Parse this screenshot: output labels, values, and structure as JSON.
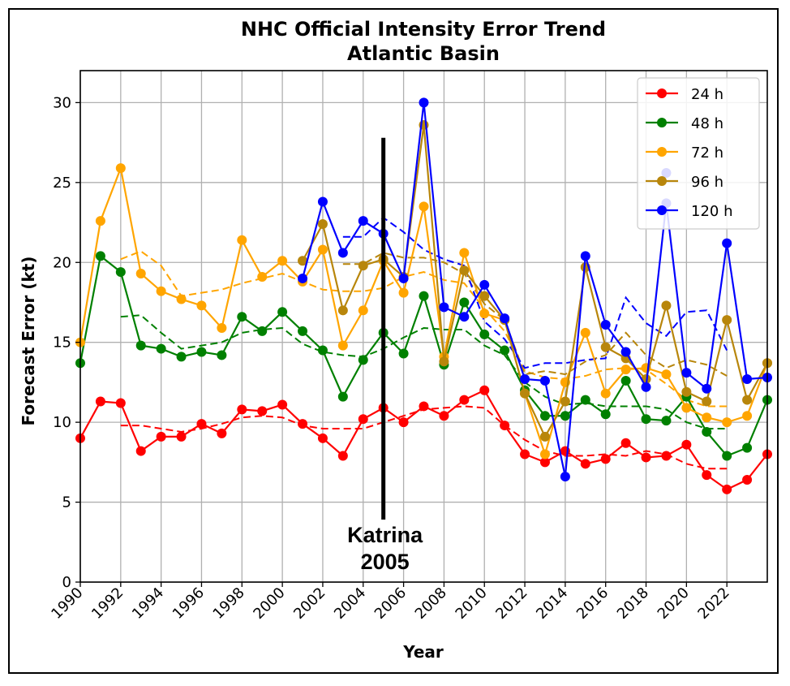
{
  "chart_data": {
    "type": "line",
    "title": "NHC Official Intensity Error Trend",
    "subtitle": "Atlantic Basin",
    "xlabel": "Year",
    "ylabel": "Forecast Error (kt)",
    "xlim": [
      1990,
      2024
    ],
    "ylim": [
      0,
      32
    ],
    "xticks": [
      1990,
      1992,
      1994,
      1996,
      1998,
      2000,
      2002,
      2004,
      2006,
      2008,
      2010,
      2012,
      2014,
      2016,
      2018,
      2020,
      2022
    ],
    "yticks": [
      0,
      5,
      10,
      15,
      20,
      25,
      30
    ],
    "grid": true,
    "legend_position": "top-right",
    "annotation": {
      "x": 2005,
      "line_to": 27.8,
      "label_line1": "Katrina",
      "label_line2": "2005"
    },
    "series": [
      {
        "name": "24 h",
        "color": "#ff0000",
        "x": [
          1990,
          1991,
          1992,
          1993,
          1994,
          1995,
          1996,
          1997,
          1998,
          1999,
          2000,
          2001,
          2002,
          2003,
          2004,
          2005,
          2006,
          2007,
          2008,
          2009,
          2010,
          2011,
          2012,
          2013,
          2014,
          2015,
          2016,
          2017,
          2018,
          2019,
          2020,
          2021,
          2022,
          2023,
          2024
        ],
        "values": [
          9.0,
          11.3,
          11.2,
          8.2,
          9.1,
          9.1,
          9.9,
          9.3,
          10.8,
          10.7,
          11.1,
          9.9,
          9.0,
          7.9,
          10.2,
          10.9,
          10.0,
          11.0,
          10.4,
          11.4,
          12.0,
          9.8,
          8.0,
          7.5,
          8.2,
          7.4,
          7.7,
          8.7,
          7.8,
          7.9,
          8.6,
          6.7,
          5.8,
          6.4,
          8.0
        ],
        "trend_x": [
          1992,
          1993,
          1994,
          1995,
          1996,
          1997,
          1998,
          1999,
          2000,
          2001,
          2002,
          2003,
          2004,
          2005,
          2006,
          2007,
          2008,
          2009,
          2010,
          2011,
          2012,
          2013,
          2014,
          2015,
          2016,
          2017,
          2018,
          2019,
          2020,
          2021,
          2022
        ],
        "trend": [
          9.8,
          9.8,
          9.6,
          9.4,
          9.6,
          9.9,
          10.3,
          10.4,
          10.3,
          9.8,
          9.6,
          9.6,
          9.6,
          10.0,
          10.4,
          10.8,
          10.9,
          11.0,
          10.9,
          9.8,
          8.9,
          8.2,
          7.9,
          7.9,
          8.0,
          7.9,
          8.2,
          8.0,
          7.4,
          7.1,
          7.1
        ]
      },
      {
        "name": "48 h",
        "color": "#008000",
        "x": [
          1990,
          1991,
          1992,
          1993,
          1994,
          1995,
          1996,
          1997,
          1998,
          1999,
          2000,
          2001,
          2002,
          2003,
          2004,
          2005,
          2006,
          2007,
          2008,
          2009,
          2010,
          2011,
          2012,
          2013,
          2014,
          2015,
          2016,
          2017,
          2018,
          2019,
          2020,
          2021,
          2022,
          2023,
          2024
        ],
        "values": [
          13.7,
          20.4,
          19.4,
          14.8,
          14.6,
          14.1,
          14.4,
          14.2,
          16.6,
          15.7,
          16.9,
          15.7,
          14.5,
          11.6,
          13.9,
          15.6,
          14.3,
          17.9,
          13.6,
          17.5,
          15.5,
          14.5,
          12.0,
          10.4,
          10.4,
          11.4,
          10.5,
          12.6,
          10.2,
          10.1,
          11.6,
          9.4,
          7.9,
          8.4,
          11.4
        ],
        "trend_x": [
          1992,
          1993,
          1994,
          1995,
          1996,
          1997,
          1998,
          1999,
          2000,
          2001,
          2002,
          2003,
          2004,
          2005,
          2006,
          2007,
          2008,
          2009,
          2010,
          2011,
          2012,
          2013,
          2014,
          2015,
          2016,
          2017,
          2018,
          2019,
          2020,
          2021,
          2022
        ],
        "trend": [
          16.6,
          16.7,
          15.6,
          14.6,
          14.8,
          15.0,
          15.6,
          15.8,
          15.9,
          14.9,
          14.4,
          14.2,
          14.1,
          14.6,
          15.3,
          15.9,
          15.8,
          15.8,
          14.8,
          14.2,
          12.5,
          11.6,
          11.1,
          11.2,
          11.0,
          11.0,
          11.0,
          10.8,
          10.0,
          9.6,
          9.6
        ]
      },
      {
        "name": "72 h",
        "color": "#ffa500",
        "x": [
          1990,
          1991,
          1992,
          1993,
          1994,
          1995,
          1996,
          1997,
          1998,
          1999,
          2000,
          2001,
          2002,
          2003,
          2004,
          2005,
          2006,
          2007,
          2008,
          2009,
          2010,
          2011,
          2012,
          2013,
          2014,
          2015,
          2016,
          2017,
          2018,
          2019,
          2020,
          2021,
          2022,
          2023,
          2024
        ],
        "values": [
          15.0,
          22.6,
          25.9,
          19.3,
          18.2,
          17.7,
          17.3,
          15.9,
          21.4,
          19.1,
          20.1,
          18.8,
          20.8,
          14.8,
          17.0,
          20.1,
          18.1,
          23.5,
          14.1,
          20.6,
          16.8,
          16.4,
          11.8,
          8.0,
          12.5,
          15.6,
          11.8,
          13.3,
          13.4,
          13.0,
          10.9,
          10.3,
          10.0,
          10.4,
          13.7
        ],
        "trend_x": [
          1992,
          1993,
          1994,
          1995,
          1996,
          1997,
          1998,
          1999,
          2000,
          2001,
          2002,
          2003,
          2004,
          2005,
          2006,
          2007,
          2008,
          2009,
          2010,
          2011,
          2012,
          2013,
          2014,
          2015,
          2016,
          2017,
          2018,
          2019,
          2020,
          2021,
          2022
        ],
        "trend": [
          20.2,
          20.7,
          19.8,
          17.9,
          18.1,
          18.3,
          18.7,
          19.0,
          19.3,
          18.8,
          18.3,
          18.2,
          18.2,
          18.4,
          19.1,
          19.4,
          18.9,
          18.7,
          17.1,
          15.7,
          13.2,
          12.8,
          12.7,
          12.9,
          13.3,
          13.4,
          13.3,
          12.4,
          11.4,
          11.0,
          11.0
        ]
      },
      {
        "name": "96 h",
        "color": "#b8860b",
        "x": [
          2001,
          2002,
          2003,
          2004,
          2005,
          2006,
          2007,
          2008,
          2009,
          2010,
          2011,
          2012,
          2013,
          2014,
          2015,
          2016,
          2017,
          2018,
          2019,
          2020,
          2021,
          2022,
          2023,
          2024
        ],
        "values": [
          20.1,
          22.4,
          17.0,
          19.8,
          20.2,
          19.1,
          28.6,
          13.8,
          19.5,
          17.9,
          16.4,
          11.8,
          9.1,
          11.3,
          19.7,
          14.7,
          14.0,
          12.7,
          17.3,
          11.9,
          11.3,
          16.4,
          11.4,
          13.7
        ],
        "trend_x": [
          2003,
          2004,
          2005,
          2006,
          2007,
          2008,
          2009,
          2010,
          2011,
          2012,
          2013,
          2014,
          2015,
          2016,
          2017,
          2018,
          2019,
          2020,
          2021,
          2022
        ],
        "trend": [
          19.9,
          19.9,
          20.6,
          20.3,
          20.3,
          20.0,
          19.3,
          17.4,
          16.4,
          13.0,
          13.2,
          13.0,
          13.8,
          14.2,
          15.6,
          14.2,
          13.4,
          13.9,
          13.6,
          12.9
        ]
      },
      {
        "name": "120 h",
        "color": "#0000ff",
        "x": [
          2001,
          2002,
          2003,
          2004,
          2005,
          2006,
          2007,
          2008,
          2009,
          2010,
          2011,
          2012,
          2013,
          2014,
          2015,
          2016,
          2017,
          2018,
          2019,
          2020,
          2021,
          2022,
          2023,
          2024
        ],
        "values": [
          19.0,
          23.8,
          20.6,
          22.6,
          21.8,
          19.0,
          30.0,
          17.2,
          16.6,
          18.6,
          16.5,
          12.7,
          12.6,
          6.6,
          20.4,
          16.1,
          14.4,
          12.2,
          23.7,
          13.1,
          12.1,
          21.2,
          12.7,
          12.8
        ],
        "trend_x": [
          2003,
          2004,
          2005,
          2006,
          2007,
          2008,
          2009,
          2010,
          2011,
          2012,
          2013,
          2014,
          2015,
          2016,
          2017,
          2018,
          2019,
          2020,
          2021,
          2022
        ],
        "trend": [
          21.6,
          21.6,
          22.8,
          21.9,
          20.8,
          20.2,
          19.8,
          16.3,
          15.2,
          13.4,
          13.7,
          13.7,
          13.9,
          14.0,
          17.8,
          16.2,
          15.4,
          16.9,
          17.0,
          14.5
        ]
      }
    ],
    "extra_points": [
      {
        "series": "120 h",
        "x": 2019,
        "y": 25.6
      }
    ]
  }
}
